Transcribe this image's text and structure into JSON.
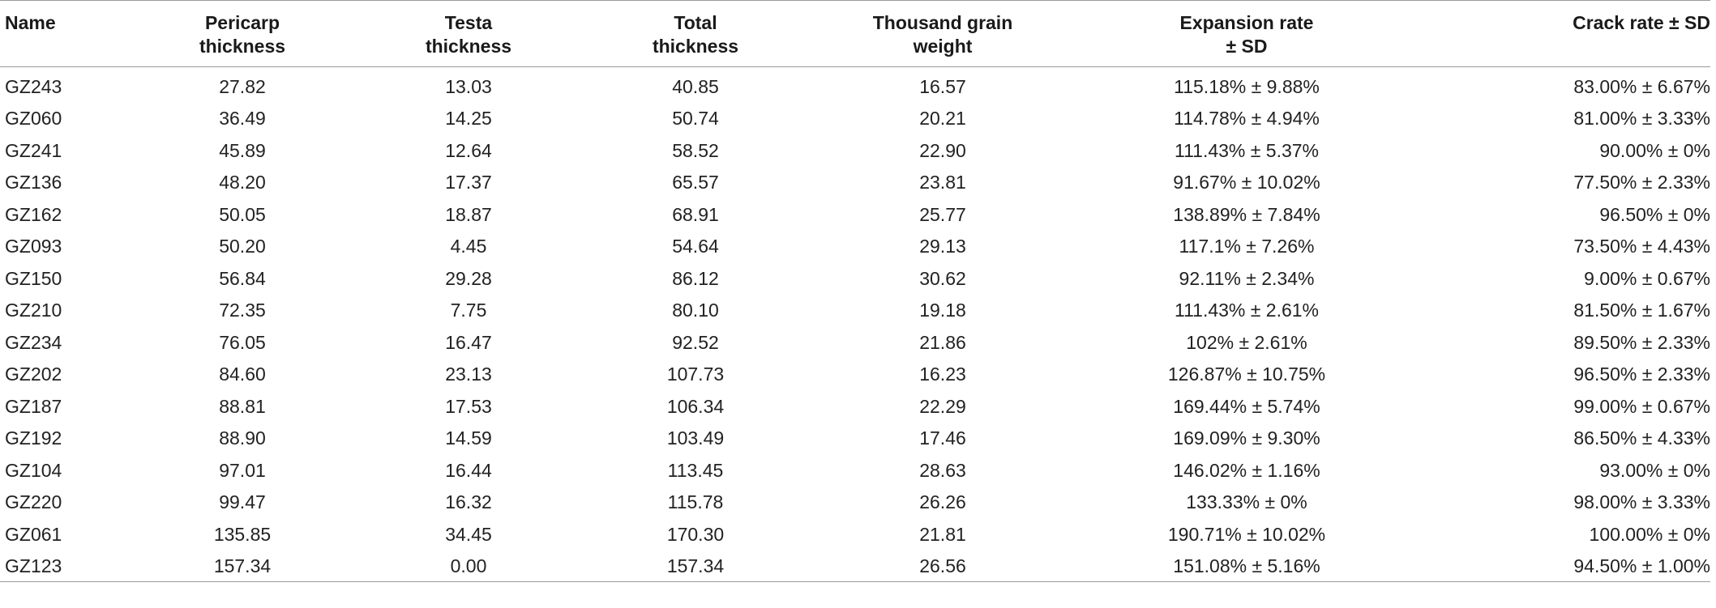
{
  "table": {
    "headers": [
      [
        "Name"
      ],
      [
        "Pericarp",
        "thickness"
      ],
      [
        "Testa",
        "thickness"
      ],
      [
        "Total",
        "thickness"
      ],
      [
        "Thousand grain",
        "weight"
      ],
      [
        "Expansion rate",
        "± SD"
      ],
      [
        "Crack rate  ± SD"
      ]
    ],
    "rows": [
      [
        "GZ243",
        "27.82",
        "13.03",
        "40.85",
        "16.57",
        "115.18% ± 9.88%",
        "83.00% ± 6.67%"
      ],
      [
        "GZ060",
        "36.49",
        "14.25",
        "50.74",
        "20.21",
        "114.78% ± 4.94%",
        "81.00% ± 3.33%"
      ],
      [
        "GZ241",
        "45.89",
        "12.64",
        "58.52",
        "22.90",
        "111.43% ± 5.37%",
        "90.00% ± 0%"
      ],
      [
        "GZ136",
        "48.20",
        "17.37",
        "65.57",
        "23.81",
        "91.67% ± 10.02%",
        "77.50% ± 2.33%"
      ],
      [
        "GZ162",
        "50.05",
        "18.87",
        "68.91",
        "25.77",
        "138.89% ± 7.84%",
        "96.50% ± 0%"
      ],
      [
        "GZ093",
        "50.20",
        "4.45",
        "54.64",
        "29.13",
        "117.1% ± 7.26%",
        "73.50% ± 4.43%"
      ],
      [
        "GZ150",
        "56.84",
        "29.28",
        "86.12",
        "30.62",
        "92.11% ± 2.34%",
        "9.00% ± 0.67%"
      ],
      [
        "GZ210",
        "72.35",
        "7.75",
        "80.10",
        "19.18",
        "111.43% ± 2.61%",
        "81.50% ± 1.67%"
      ],
      [
        "GZ234",
        "76.05",
        "16.47",
        "92.52",
        "21.86",
        "102% ± 2.61%",
        "89.50% ± 2.33%"
      ],
      [
        "GZ202",
        "84.60",
        "23.13",
        "107.73",
        "16.23",
        "126.87% ± 10.75%",
        "96.50% ± 2.33%"
      ],
      [
        "GZ187",
        "88.81",
        "17.53",
        "106.34",
        "22.29",
        "169.44% ± 5.74%",
        "99.00% ± 0.67%"
      ],
      [
        "GZ192",
        "88.90",
        "14.59",
        "103.49",
        "17.46",
        "169.09% ± 9.30%",
        "86.50% ± 4.33%"
      ],
      [
        "GZ104",
        "97.01",
        "16.44",
        "113.45",
        "28.63",
        "146.02% ± 1.16%",
        "93.00% ± 0%"
      ],
      [
        "GZ220",
        "99.47",
        "16.32",
        "115.78",
        "26.26",
        "133.33% ± 0%",
        "98.00% ± 3.33%"
      ],
      [
        "GZ061",
        "135.85",
        "34.45",
        "170.30",
        "21.81",
        "190.71% ± 10.02%",
        "100.00% ± 0%"
      ],
      [
        "GZ123",
        "157.34",
        "0.00",
        "157.34",
        "26.56",
        "151.08% ± 5.16%",
        "94.50% ± 1.00%"
      ]
    ]
  }
}
